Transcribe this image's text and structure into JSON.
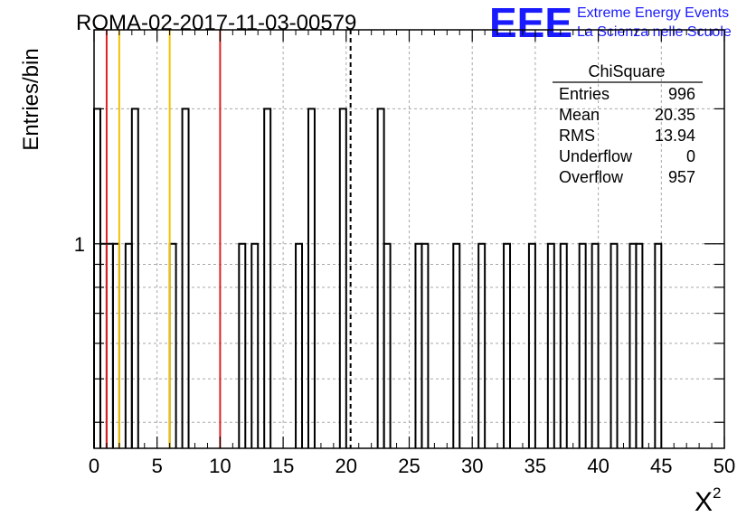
{
  "chart_data": {
    "type": "histogram",
    "title": "ROMA-02-2017-11-03-00579",
    "xlabel": "X",
    "xlabel_superscript": "2",
    "ylabel": "Entries/bin",
    "xlim": [
      0,
      50
    ],
    "ylim": [
      0.35,
      3
    ],
    "y_scale": "log",
    "grid": true,
    "x_ticks": [
      "0",
      "5",
      "10",
      "15",
      "20",
      "25",
      "30",
      "35",
      "40",
      "45",
      "50"
    ],
    "y_tick_labels": [
      {
        "value": 1,
        "label": "1"
      }
    ],
    "bin_width": 0.5,
    "bins": [
      {
        "x": 0.0,
        "count": 2
      },
      {
        "x": 0.5,
        "count": 1
      },
      {
        "x": 1.0,
        "count": 1
      },
      {
        "x": 1.5,
        "count": 1
      },
      {
        "x": 2.5,
        "count": 1
      },
      {
        "x": 3.0,
        "count": 2
      },
      {
        "x": 6.0,
        "count": 1
      },
      {
        "x": 7.0,
        "count": 2
      },
      {
        "x": 11.5,
        "count": 1
      },
      {
        "x": 12.5,
        "count": 1
      },
      {
        "x": 13.5,
        "count": 2
      },
      {
        "x": 16.0,
        "count": 1
      },
      {
        "x": 17.0,
        "count": 2
      },
      {
        "x": 19.5,
        "count": 2
      },
      {
        "x": 22.5,
        "count": 2
      },
      {
        "x": 23.0,
        "count": 1
      },
      {
        "x": 25.5,
        "count": 1
      },
      {
        "x": 26.0,
        "count": 1
      },
      {
        "x": 28.5,
        "count": 1
      },
      {
        "x": 30.5,
        "count": 1
      },
      {
        "x": 32.5,
        "count": 1
      },
      {
        "x": 34.5,
        "count": 1
      },
      {
        "x": 36.0,
        "count": 1
      },
      {
        "x": 37.0,
        "count": 1
      },
      {
        "x": 38.5,
        "count": 1
      },
      {
        "x": 39.5,
        "count": 1
      },
      {
        "x": 41.0,
        "count": 1
      },
      {
        "x": 42.5,
        "count": 1
      },
      {
        "x": 43.0,
        "count": 1
      },
      {
        "x": 44.5,
        "count": 1
      }
    ],
    "reference_lines": [
      {
        "x": 1,
        "color": "#dd2222"
      },
      {
        "x": 2,
        "color": "#f5c000"
      },
      {
        "x": 6,
        "color": "#f5c000"
      },
      {
        "x": 10,
        "color": "#dd2222"
      }
    ],
    "mean_line": {
      "x": 20.35,
      "style": "dashed",
      "color": "#000000"
    },
    "stats": {
      "name": "ChiSquare",
      "rows": [
        {
          "label": "Entries",
          "value": "996"
        },
        {
          "label": "Mean",
          "value": "20.35"
        },
        {
          "label": "RMS",
          "value": "13.94"
        },
        {
          "label": "Underflow",
          "value": "0"
        },
        {
          "label": "Overflow",
          "value": "957"
        }
      ]
    },
    "logo": {
      "mark": "EEE",
      "line1": "Extreme Energy Events",
      "line2": "La Scienza nelle Scuole",
      "color": "#1a1aff"
    }
  }
}
